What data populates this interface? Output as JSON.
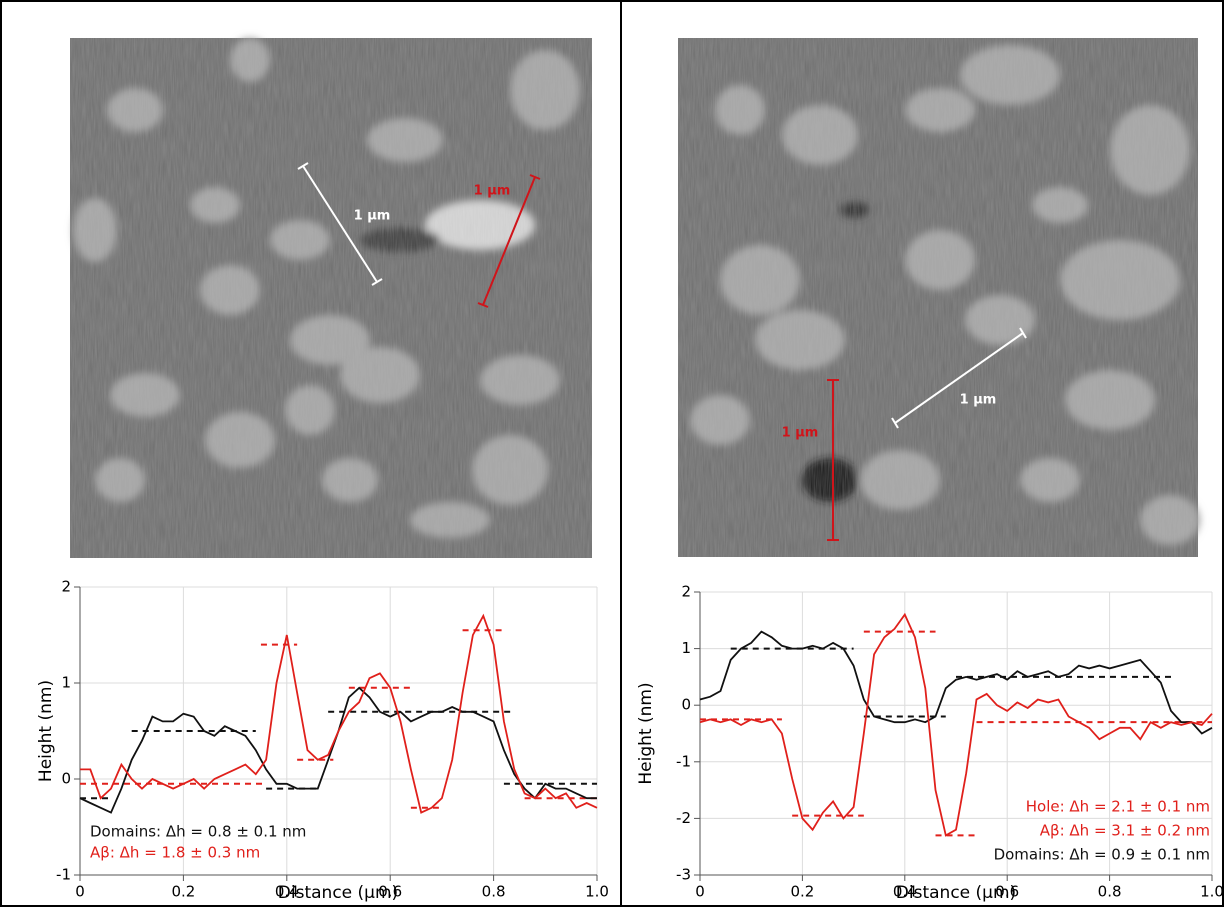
{
  "images": [
    {
      "scale_bars": [
        {
          "label": "1 µm"
        },
        {
          "label": "1 µm"
        }
      ]
    },
    {
      "scale_bars": [
        {
          "label": "1 µm"
        },
        {
          "label": "1 µm"
        }
      ]
    }
  ],
  "chart_data": [
    {
      "type": "line",
      "x_label": "Distance (µm)",
      "y_label": "Height (nm)",
      "xlim": [
        0,
        1
      ],
      "xticks": [
        0,
        0.2,
        0.4,
        0.6,
        0.8,
        {
          "value": 1,
          "label": "1.0"
        }
      ],
      "ylim": [
        -1,
        2
      ],
      "yticks": [
        -1,
        0,
        1,
        2
      ],
      "grid": true,
      "x": [
        0,
        0.02,
        0.04,
        0.06,
        0.08,
        0.1,
        0.12,
        0.14,
        0.16,
        0.18,
        0.2,
        0.22,
        0.24,
        0.26,
        0.28,
        0.3,
        0.32,
        0.34,
        0.36,
        0.38,
        0.4,
        0.42,
        0.44,
        0.46,
        0.48,
        0.5,
        0.52,
        0.54,
        0.56,
        0.58,
        0.6,
        0.62,
        0.64,
        0.66,
        0.68,
        0.7,
        0.72,
        0.74,
        0.76,
        0.78,
        0.8,
        0.82,
        0.84,
        0.86,
        0.88,
        0.9,
        0.92,
        0.94,
        0.96,
        0.98,
        1
      ],
      "series": [
        {
          "color": "#111111",
          "values": [
            -0.2,
            -0.25,
            -0.3,
            -0.35,
            -0.1,
            0.2,
            0.4,
            0.65,
            0.6,
            0.6,
            0.68,
            0.65,
            0.5,
            0.45,
            0.55,
            0.5,
            0.45,
            0.3,
            0.1,
            -0.05,
            -0.05,
            -0.1,
            -0.1,
            -0.1,
            0.2,
            0.5,
            0.85,
            0.95,
            0.85,
            0.7,
            0.65,
            0.7,
            0.6,
            0.65,
            0.7,
            0.7,
            0.75,
            0.7,
            0.7,
            0.65,
            0.6,
            0.3,
            0.05,
            -0.1,
            -0.2,
            -0.05,
            -0.1,
            -0.1,
            -0.15,
            -0.2,
            -0.2
          ]
        },
        {
          "color": "#e0201b",
          "values": [
            0.1,
            0.1,
            -0.2,
            -0.1,
            0.15,
            0,
            -0.1,
            0,
            -0.05,
            -0.1,
            -0.05,
            0,
            -0.1,
            0,
            0.05,
            0.1,
            0.15,
            0.05,
            0.2,
            1,
            1.5,
            0.9,
            0.3,
            0.2,
            0.25,
            0.5,
            0.7,
            0.8,
            1.05,
            1.1,
            0.95,
            0.6,
            0.1,
            -0.35,
            -0.3,
            -0.2,
            0.2,
            0.9,
            1.5,
            1.7,
            1.4,
            0.6,
            0.1,
            -0.15,
            -0.2,
            -0.1,
            -0.2,
            -0.15,
            -0.3,
            -0.25,
            -0.3
          ]
        }
      ],
      "levels": [
        {
          "color": "#111111",
          "x": [
            0,
            0.06
          ],
          "y": -0.2
        },
        {
          "color": "#111111",
          "x": [
            0.1,
            0.34
          ],
          "y": 0.5
        },
        {
          "color": "#111111",
          "x": [
            0.36,
            0.46
          ],
          "y": -0.1
        },
        {
          "color": "#111111",
          "x": [
            0.48,
            0.84
          ],
          "y": 0.7
        },
        {
          "color": "#111111",
          "x": [
            0.82,
            1
          ],
          "y": -0.05
        },
        {
          "color": "#e0201b",
          "x": [
            0,
            0.36
          ],
          "y": -0.05
        },
        {
          "color": "#e0201b",
          "x": [
            0.35,
            0.42
          ],
          "y": 1.4
        },
        {
          "color": "#e0201b",
          "x": [
            0.42,
            0.49
          ],
          "y": 0.2
        },
        {
          "color": "#e0201b",
          "x": [
            0.52,
            0.64
          ],
          "y": 0.95
        },
        {
          "color": "#e0201b",
          "x": [
            0.64,
            0.7
          ],
          "y": -0.3
        },
        {
          "color": "#e0201b",
          "x": [
            0.74,
            0.82
          ],
          "y": 1.55
        },
        {
          "color": "#e0201b",
          "x": [
            0.86,
            1
          ],
          "y": -0.2
        }
      ],
      "annotations": [
        {
          "text": "Domains: Δh = 0.8 ± 0.1 nm",
          "color": "#111111"
        },
        {
          "text": "Aβ: Δh = 1.8 ± 0.3 nm",
          "color": "#e0201b"
        }
      ]
    },
    {
      "type": "line",
      "x_label": "Distance (µm)",
      "y_label": "Height (nm)",
      "xlim": [
        0,
        1
      ],
      "xticks": [
        0,
        0.2,
        0.4,
        0.6,
        0.8,
        {
          "value": 1,
          "label": "1.0"
        }
      ],
      "ylim": [
        -3,
        2
      ],
      "yticks": [
        -3,
        -2,
        -1,
        0,
        1,
        2
      ],
      "grid": true,
      "x": [
        0,
        0.02,
        0.04,
        0.06,
        0.08,
        0.1,
        0.12,
        0.14,
        0.16,
        0.18,
        0.2,
        0.22,
        0.24,
        0.26,
        0.28,
        0.3,
        0.32,
        0.34,
        0.36,
        0.38,
        0.4,
        0.42,
        0.44,
        0.46,
        0.48,
        0.5,
        0.52,
        0.54,
        0.56,
        0.58,
        0.6,
        0.62,
        0.64,
        0.66,
        0.68,
        0.7,
        0.72,
        0.74,
        0.76,
        0.78,
        0.8,
        0.82,
        0.84,
        0.86,
        0.88,
        0.9,
        0.92,
        0.94,
        0.96,
        0.98,
        1
      ],
      "series": [
        {
          "color": "#111111",
          "values": [
            0.1,
            0.15,
            0.25,
            0.8,
            1,
            1.1,
            1.3,
            1.2,
            1.05,
            1,
            1,
            1.05,
            1,
            1.1,
            1,
            0.7,
            0.1,
            -0.2,
            -0.25,
            -0.3,
            -0.3,
            -0.25,
            -0.3,
            -0.2,
            0.3,
            0.45,
            0.5,
            0.45,
            0.5,
            0.55,
            0.45,
            0.6,
            0.5,
            0.55,
            0.6,
            0.5,
            0.55,
            0.7,
            0.65,
            0.7,
            0.65,
            0.7,
            0.75,
            0.8,
            0.6,
            0.4,
            -0.1,
            -0.3,
            -0.3,
            -0.5,
            -0.4
          ]
        },
        {
          "color": "#e0201b",
          "values": [
            -0.3,
            -0.25,
            -0.3,
            -0.25,
            -0.35,
            -0.25,
            -0.3,
            -0.25,
            -0.5,
            -1.3,
            -2,
            -2.2,
            -1.9,
            -1.7,
            -2,
            -1.8,
            -0.5,
            0.9,
            1.2,
            1.35,
            1.6,
            1.2,
            0.3,
            -1.5,
            -2.3,
            -2.2,
            -1.2,
            0.1,
            0.2,
            0,
            -0.1,
            0.05,
            -0.05,
            0.1,
            0.05,
            0.1,
            -0.2,
            -0.3,
            -0.4,
            -0.6,
            -0.5,
            -0.4,
            -0.4,
            -0.6,
            -0.3,
            -0.4,
            -0.3,
            -0.35,
            -0.3,
            -0.35,
            -0.15
          ]
        }
      ],
      "levels": [
        {
          "color": "#111111",
          "x": [
            0.06,
            0.3
          ],
          "y": 1
        },
        {
          "color": "#111111",
          "x": [
            0.32,
            0.48
          ],
          "y": -0.2
        },
        {
          "color": "#111111",
          "x": [
            0.5,
            0.92
          ],
          "y": 0.5
        },
        {
          "color": "#e0201b",
          "x": [
            0,
            0.16
          ],
          "y": -0.25
        },
        {
          "color": "#e0201b",
          "x": [
            0.18,
            0.32
          ],
          "y": -1.95
        },
        {
          "color": "#e0201b",
          "x": [
            0.32,
            0.46
          ],
          "y": 1.3
        },
        {
          "color": "#e0201b",
          "x": [
            0.46,
            0.54
          ],
          "y": -2.3
        },
        {
          "color": "#e0201b",
          "x": [
            0.54,
            1
          ],
          "y": -0.3
        }
      ],
      "annotations": [
        {
          "text": "Hole: Δh = 2.1 ± 0.1 nm",
          "color": "#e0201b"
        },
        {
          "text": "Aβ: Δh = 3.1 ± 0.2 nm",
          "color": "#e0201b"
        },
        {
          "text": "Domains: Δh = 0.9 ± 0.1 nm",
          "color": "#111111"
        }
      ]
    }
  ]
}
